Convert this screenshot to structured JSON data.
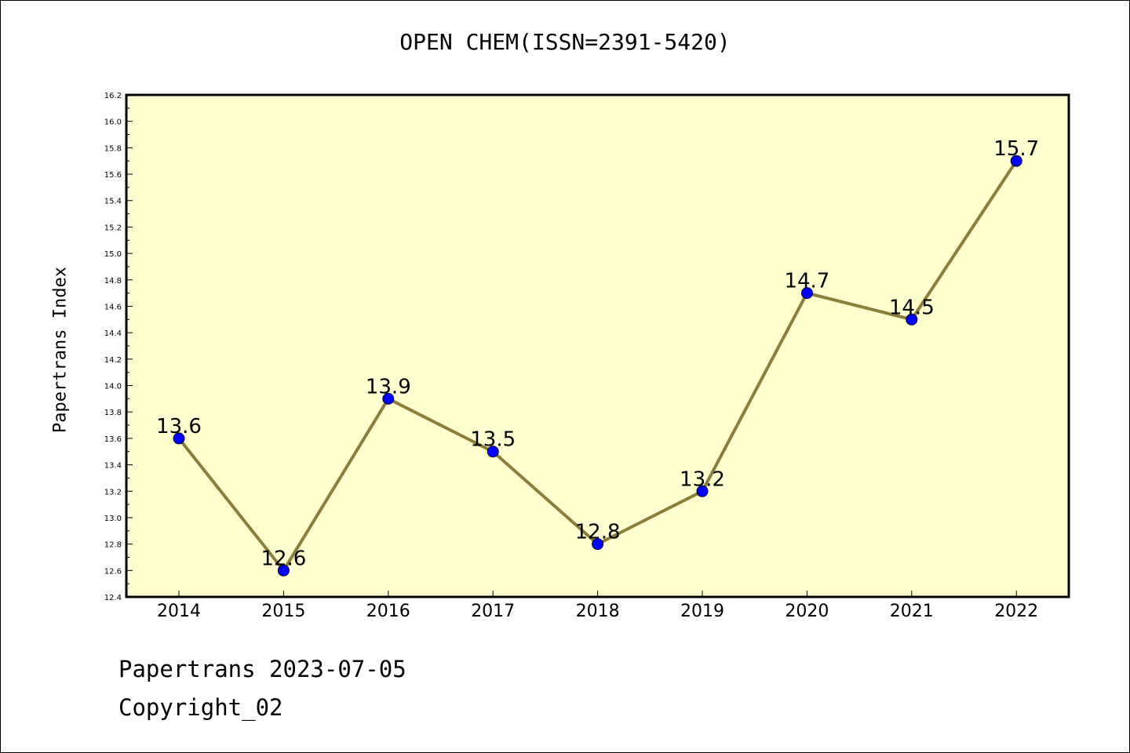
{
  "chart_data": {
    "type": "line",
    "title": "OPEN CHEM(ISSN=2391-5420)",
    "xlabel": "",
    "ylabel": "Papertrans Index",
    "categories": [
      "2014",
      "2015",
      "2016",
      "2017",
      "2018",
      "2019",
      "2020",
      "2021",
      "2022"
    ],
    "series": [
      {
        "values": [
          13.6,
          12.6,
          13.9,
          13.5,
          12.8,
          13.2,
          14.7,
          14.5,
          15.7
        ]
      }
    ],
    "data_labels": [
      "13.6",
      "12.6",
      "13.9",
      "13.5",
      "12.8",
      "13.2",
      "14.7",
      "14.5",
      "15.7"
    ],
    "ylim": [
      12.4,
      16.2
    ],
    "yticks": [
      "12.4",
      "12.6",
      "12.8",
      "13.0",
      "13.2",
      "13.4",
      "13.6",
      "13.8",
      "14.0",
      "14.2",
      "14.4",
      "14.6",
      "14.8",
      "15.0",
      "15.2",
      "15.4",
      "15.6",
      "15.8",
      "16.0",
      "16.2"
    ],
    "grid": false,
    "colors": {
      "plot_background": "#ffffd0",
      "line": "#8b7d3a",
      "marker": "#0000ff"
    }
  },
  "footer": {
    "line1": "Papertrans 2023-07-05",
    "line2": "Copyright_02"
  }
}
